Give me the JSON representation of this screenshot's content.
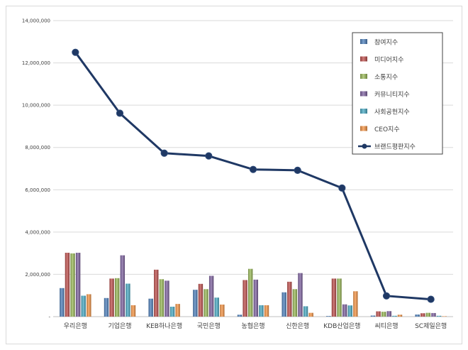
{
  "chart_data": {
    "type": "bar",
    "title": "",
    "xlabel": "",
    "ylabel": "",
    "ylim": [
      0,
      14000000
    ],
    "yticks": [
      0,
      2000000,
      4000000,
      6000000,
      8000000,
      10000000,
      12000000,
      14000000
    ],
    "ytick_labels": [
      "-",
      "2,000,000",
      "4,000,000",
      "6,000,000",
      "8,000,000",
      "10,000,000",
      "12,000,000",
      "14,000,000"
    ],
    "grid": true,
    "legend_position": "top-right",
    "categories": [
      "우리은행",
      "기업은행",
      "KEB하나은행",
      "국민은행",
      "농협은행",
      "신한은행",
      "KDB산업은행",
      "씨티은행",
      "SC제일은행"
    ],
    "series": [
      {
        "name": "참여지수",
        "kind": "bar",
        "color": "#4f81bd",
        "values": [
          1350000,
          880000,
          850000,
          1270000,
          90000,
          1150000,
          30000,
          50000,
          100000
        ]
      },
      {
        "name": "미디어지수",
        "kind": "bar",
        "color": "#c0504d",
        "values": [
          3020000,
          1800000,
          2220000,
          1550000,
          1730000,
          1650000,
          1800000,
          250000,
          160000
        ]
      },
      {
        "name": "소통지수",
        "kind": "bar",
        "color": "#9bbb59",
        "values": [
          2990000,
          1820000,
          1770000,
          1300000,
          2260000,
          1300000,
          1800000,
          230000,
          180000
        ]
      },
      {
        "name": "커뮤니티지수",
        "kind": "bar",
        "color": "#8064a2",
        "values": [
          3020000,
          2900000,
          1700000,
          1930000,
          1750000,
          2060000,
          580000,
          260000,
          170000
        ]
      },
      {
        "name": "사회공헌지수",
        "kind": "bar",
        "color": "#4bacc6",
        "values": [
          990000,
          1560000,
          470000,
          900000,
          540000,
          490000,
          530000,
          40000,
          40000
        ]
      },
      {
        "name": "CEO지수",
        "kind": "bar",
        "color": "#f79646",
        "values": [
          1060000,
          540000,
          600000,
          570000,
          540000,
          180000,
          1200000,
          90000,
          20000
        ]
      },
      {
        "name": "브랜드평판지수",
        "kind": "line",
        "color": "#1f3864",
        "values": [
          12500000,
          9620000,
          7730000,
          7600000,
          6960000,
          6920000,
          6080000,
          980000,
          820000
        ]
      }
    ]
  }
}
